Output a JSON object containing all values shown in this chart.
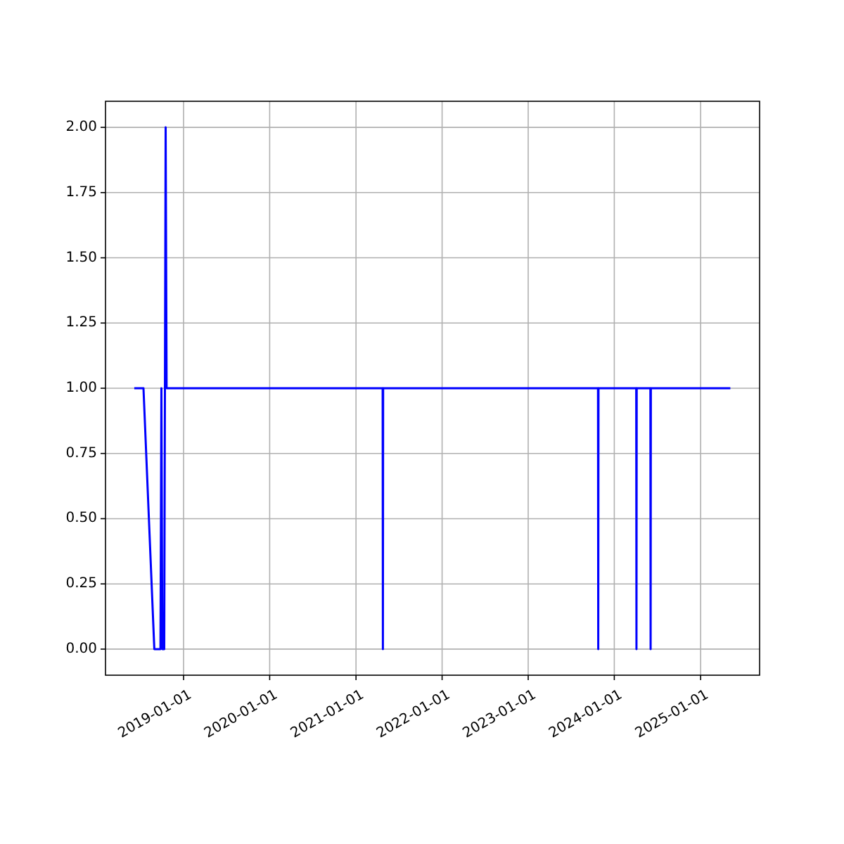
{
  "chart_data": {
    "type": "line",
    "x": [
      "2018-06-06",
      "2018-07-15",
      "2018-08-30",
      "2018-09-25",
      "2018-09-29",
      "2018-10-03",
      "2018-10-11",
      "2018-10-17",
      "2018-10-21",
      "2021-04-24",
      "2021-04-25",
      "2021-04-26",
      "2023-10-24",
      "2023-10-25",
      "2023-10-26",
      "2024-04-03",
      "2024-04-04",
      "2024-04-05",
      "2024-06-02",
      "2024-06-03",
      "2024-06-04",
      "2025-05-07"
    ],
    "series": [
      {
        "color": "#0000ff",
        "values": [
          1,
          1,
          0,
          0,
          1,
          0,
          0,
          2,
          1,
          1,
          0,
          1,
          1,
          0,
          1,
          1,
          0,
          1,
          1,
          0,
          1,
          1
        ]
      }
    ],
    "xlim": [
      "2018-02-04",
      "2025-09-08"
    ],
    "xticks": [
      "2019-01-01",
      "2020-01-01",
      "2021-01-01",
      "2022-01-01",
      "2023-01-01",
      "2024-01-01",
      "2025-01-01"
    ],
    "ylim": [
      -0.1,
      2.1
    ],
    "yticks": [
      {
        "value": 0,
        "label": "0.00"
      },
      {
        "value": 0.25,
        "label": "0.25"
      },
      {
        "value": 0.5,
        "label": "0.50"
      },
      {
        "value": 0.75,
        "label": "0.75"
      },
      {
        "value": 1,
        "label": "1.00"
      },
      {
        "value": 1.25,
        "label": "1.25"
      },
      {
        "value": 1.5,
        "label": "1.50"
      },
      {
        "value": 1.75,
        "label": "1.75"
      },
      {
        "value": 2,
        "label": "2.00"
      }
    ],
    "grid": true
  }
}
